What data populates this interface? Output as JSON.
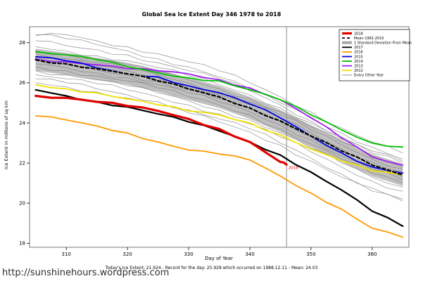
{
  "page": {
    "title": "Global Sea Ice Extent Day 346 1978 to 2018",
    "site_url": "http://sunshinehours.wordpress.com",
    "caption": "Today's Ice Extent: 21.924  - Record for the day: 25.928 which occurred on 1988.12.11  - Mean: 24.03"
  },
  "chart_data": {
    "type": "line",
    "title": "Global Sea Ice Extent Day 346 1978 to 2018",
    "xlabel": "Day of Year",
    "ylabel": "Ice Extent in millions of sq km",
    "xlim": [
      304,
      366
    ],
    "ylim": [
      17.8,
      28.8
    ],
    "xticks": [
      310,
      320,
      330,
      340,
      350,
      360
    ],
    "yticks": [
      18,
      20,
      22,
      24,
      26,
      28
    ],
    "grid": false,
    "vline_x": 346,
    "annotation": {
      "text": "2018",
      "x": 346.3,
      "y": 21.7,
      "color": "#e00000"
    },
    "days": [
      305,
      310,
      315,
      320,
      325,
      330,
      335,
      340,
      345,
      350,
      355,
      360,
      365
    ],
    "std_band": {
      "name": "1 Standard Deviation From Mean",
      "color": "#b8b8b8",
      "upper": [
        27.7,
        27.5,
        27.25,
        27.0,
        26.65,
        26.25,
        25.85,
        25.3,
        24.65,
        23.9,
        23.15,
        22.45,
        21.95
      ],
      "lower": [
        26.6,
        26.4,
        26.15,
        25.9,
        25.55,
        25.15,
        24.75,
        24.2,
        23.55,
        22.8,
        22.05,
        21.35,
        20.85
      ]
    },
    "background_series": {
      "name": "Every Other Year",
      "color": "#7d7d7d",
      "lines": [
        [
          28.4,
          28.2,
          27.9,
          27.6,
          27.2,
          26.8,
          26.3,
          25.7,
          25.0,
          24.3,
          23.5,
          22.8,
          22.2
        ],
        [
          28.1,
          27.85,
          27.65,
          27.4,
          27.0,
          26.6,
          26.2,
          25.6,
          24.9,
          24.1,
          23.3,
          22.6,
          22.1
        ],
        [
          27.8,
          27.6,
          27.35,
          27.1,
          26.75,
          26.35,
          25.9,
          25.4,
          24.75,
          24.0,
          23.2,
          22.5,
          22.0
        ],
        [
          27.6,
          27.4,
          27.2,
          26.9,
          26.55,
          26.15,
          25.7,
          25.2,
          24.55,
          23.8,
          23.05,
          22.35,
          21.8
        ],
        [
          27.45,
          27.2,
          27.0,
          26.7,
          26.4,
          26.0,
          25.55,
          25.05,
          24.4,
          23.65,
          22.9,
          22.2,
          21.7
        ],
        [
          27.3,
          27.1,
          26.85,
          26.6,
          26.25,
          25.85,
          25.4,
          24.9,
          24.25,
          23.5,
          22.7,
          22.05,
          21.55
        ],
        [
          27.1,
          26.9,
          26.65,
          26.4,
          26.05,
          25.65,
          25.2,
          24.7,
          24.05,
          23.3,
          22.5,
          21.85,
          21.3
        ],
        [
          26.95,
          26.75,
          26.5,
          26.25,
          25.9,
          25.5,
          25.05,
          24.55,
          23.9,
          23.15,
          22.35,
          21.7,
          21.15
        ],
        [
          26.8,
          26.6,
          26.35,
          26.1,
          25.75,
          25.3,
          24.9,
          24.4,
          23.7,
          22.95,
          22.2,
          21.5,
          21.0
        ],
        [
          26.6,
          26.4,
          26.15,
          25.85,
          25.5,
          25.1,
          24.65,
          24.15,
          23.5,
          22.75,
          22.0,
          21.3,
          20.8
        ],
        [
          26.4,
          26.2,
          25.95,
          25.65,
          25.3,
          24.9,
          24.45,
          23.95,
          23.3,
          22.55,
          21.8,
          21.1,
          20.6
        ],
        [
          26.2,
          26.0,
          25.7,
          25.4,
          25.05,
          24.65,
          24.2,
          23.7,
          23.0,
          22.25,
          21.45,
          20.75,
          20.2
        ],
        [
          28.35,
          28.4,
          28.1,
          27.8,
          27.45,
          27.05,
          26.6,
          26.0,
          25.3,
          24.55,
          23.75,
          23.05,
          22.5
        ],
        [
          26.0,
          25.8,
          25.55,
          25.25,
          24.9,
          24.5,
          24.05,
          23.55,
          22.9,
          22.1,
          21.3,
          20.6,
          20.1
        ]
      ]
    },
    "series": [
      {
        "name": "2012",
        "color": "#f0e000",
        "width": 1.8,
        "values": [
          25.9,
          25.7,
          25.5,
          25.2,
          24.9,
          24.6,
          24.4,
          24.0,
          23.4,
          22.7,
          22.1,
          21.6,
          21.4
        ]
      },
      {
        "name": "2013",
        "color": "#a020f0",
        "width": 1.8,
        "values": [
          27.2,
          27.05,
          26.9,
          26.7,
          26.6,
          26.45,
          26.15,
          25.75,
          25.15,
          24.25,
          23.25,
          22.3,
          21.9
        ]
      },
      {
        "name": "2014",
        "color": "#00c000",
        "width": 1.8,
        "values": [
          27.55,
          27.4,
          27.15,
          26.8,
          26.5,
          26.25,
          26.1,
          25.65,
          25.15,
          24.4,
          23.65,
          23.0,
          22.8
        ]
      },
      {
        "name": "2015",
        "color": "#0000e0",
        "width": 1.8,
        "values": [
          27.3,
          27.1,
          26.75,
          26.45,
          26.3,
          25.85,
          25.5,
          24.95,
          24.25,
          23.35,
          22.5,
          21.8,
          21.5
        ]
      },
      {
        "name": "2016",
        "color": "#ff9900",
        "width": 1.8,
        "values": [
          24.35,
          24.15,
          23.85,
          23.5,
          23.05,
          22.65,
          22.45,
          22.15,
          21.35,
          20.5,
          19.7,
          18.75,
          18.3
        ]
      },
      {
        "name": "2017",
        "color": "#000000",
        "width": 2.2,
        "values": [
          25.65,
          25.35,
          25.05,
          24.8,
          24.45,
          24.05,
          23.6,
          23.05,
          22.4,
          21.55,
          20.65,
          19.6,
          18.85
        ]
      },
      {
        "name": "Mean 1981-2010",
        "color": "#000000",
        "width": 2.2,
        "dash": "5 3",
        "underlay": "#ffffff",
        "values": [
          27.15,
          26.95,
          26.7,
          26.45,
          26.1,
          25.7,
          25.3,
          24.75,
          24.1,
          23.35,
          22.6,
          21.9,
          21.4
        ]
      },
      {
        "name": "2018",
        "color": "#e00000",
        "width": 3.2,
        "days": [
          305,
          310,
          315,
          320,
          325,
          330,
          335,
          340,
          345,
          346
        ],
        "values": [
          25.35,
          25.25,
          25.05,
          24.85,
          24.6,
          24.2,
          23.7,
          23.05,
          22.05,
          21.92
        ]
      }
    ],
    "legend": [
      {
        "label": "2018",
        "color": "#e00000",
        "lw": 3.2
      },
      {
        "label": "Mean 1981-2010",
        "color": "#000000",
        "lw": 1.8,
        "dash": "4 3"
      },
      {
        "label": "1 Standard Deviation From Mean",
        "color": "#a8a8a8",
        "lw": 4
      },
      {
        "label": "2017",
        "color": "#000000",
        "lw": 1.8
      },
      {
        "label": "2016",
        "color": "#ff9900",
        "lw": 1.8
      },
      {
        "label": "2015",
        "color": "#0000e0",
        "lw": 1.8
      },
      {
        "label": "2014",
        "color": "#00c000",
        "lw": 1.8
      },
      {
        "label": "2013",
        "color": "#a020f0",
        "lw": 1.8
      },
      {
        "label": "2012",
        "color": "#f0e000",
        "lw": 1.8
      },
      {
        "label": "Every Other Year",
        "color": "#7d7d7d",
        "lw": 0.8
      }
    ]
  }
}
